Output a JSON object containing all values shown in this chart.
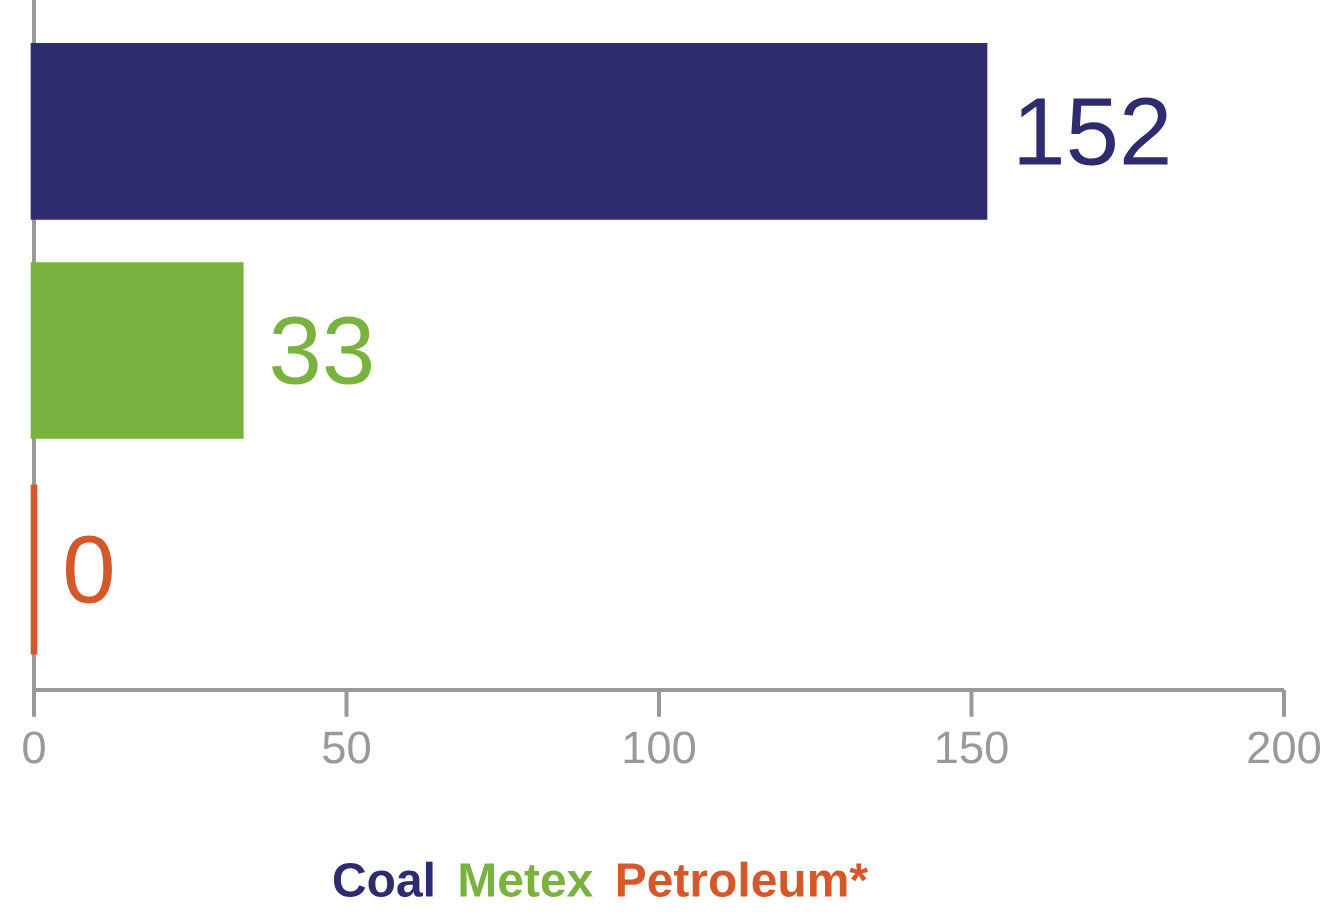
{
  "chart_data": {
    "type": "bar",
    "orientation": "horizontal",
    "categories": [
      null,
      null,
      null
    ],
    "series": [
      {
        "name": "Coal",
        "color": "#2e2c6e",
        "values": [
          152,
          null,
          null
        ]
      },
      {
        "name": "Metex",
        "color": "#7ab23f",
        "values": [
          null,
          33,
          null
        ]
      },
      {
        "name": "Petroleum*",
        "color": "#d3592b",
        "values": [
          null,
          null,
          0
        ]
      }
    ],
    "xlim": [
      0,
      200
    ],
    "xticks": [
      0,
      50,
      100,
      150,
      200
    ],
    "data_labels": true,
    "legend": "bottom",
    "grid": false
  }
}
